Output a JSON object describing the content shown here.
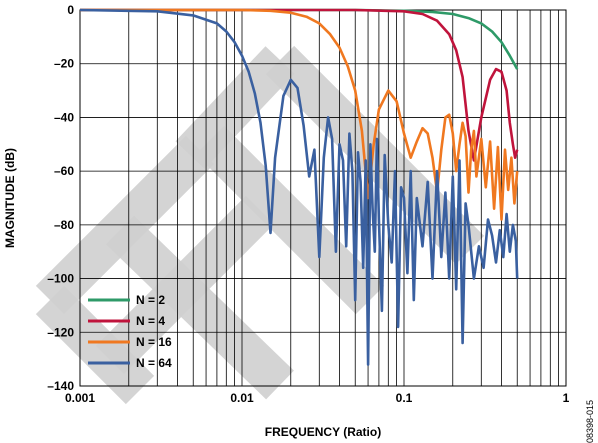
{
  "chart_data": {
    "type": "line",
    "xscale": "log",
    "xlabel": "FREQUENCY (Ratio)",
    "ylabel": "MAGNITUDE (dB)",
    "xlim": [
      0.001,
      1
    ],
    "ylim": [
      -140,
      0
    ],
    "xticks": [
      0.001,
      0.01,
      0.1,
      1
    ],
    "xtick_labels": [
      "0.001",
      "0.01",
      "0.1",
      "1"
    ],
    "yticks": [
      0,
      -20,
      -40,
      -60,
      -80,
      -100,
      -120,
      -140
    ],
    "ytick_labels": [
      "0",
      "–20",
      "–40",
      "–60",
      "–80",
      "–100",
      "–120",
      "–140"
    ],
    "grid": true,
    "legend_position": "bottom-left",
    "watermark_text": "ETE",
    "figure_id": "08398-015",
    "series": [
      {
        "name": "N = 2",
        "color": "#2e9a68",
        "x": [
          0.001,
          0.01,
          0.05,
          0.1,
          0.15,
          0.2,
          0.25,
          0.3,
          0.35,
          0.4,
          0.45,
          0.5
        ],
        "y": [
          0,
          0,
          0,
          -0.3,
          -0.7,
          -1.5,
          -3,
          -5,
          -8,
          -12,
          -17,
          -22
        ]
      },
      {
        "name": "N = 4",
        "color": "#c0143c",
        "x": [
          0.001,
          0.01,
          0.05,
          0.1,
          0.13,
          0.16,
          0.19,
          0.21,
          0.23,
          0.25,
          0.27,
          0.3,
          0.34,
          0.37,
          0.4,
          0.43,
          0.45,
          0.47,
          0.485,
          0.5
        ],
        "y": [
          0,
          0,
          0,
          -0.5,
          -1.5,
          -4,
          -9,
          -15,
          -25,
          -45,
          -56,
          -40,
          -26,
          -22,
          -23,
          -30,
          -42,
          -50,
          -55,
          -52
        ]
      },
      {
        "name": "N = 16",
        "color": "#f07820",
        "x": [
          0.001,
          0.005,
          0.01,
          0.015,
          0.02,
          0.025,
          0.03,
          0.035,
          0.04,
          0.045,
          0.05,
          0.055,
          0.06,
          0.065,
          0.07,
          0.08,
          0.09,
          0.1,
          0.11,
          0.12,
          0.13,
          0.14,
          0.15,
          0.16,
          0.17,
          0.18,
          0.19,
          0.2,
          0.21,
          0.22,
          0.23,
          0.24,
          0.25,
          0.26,
          0.27,
          0.28,
          0.3,
          0.32,
          0.34,
          0.36,
          0.38,
          0.4,
          0.42,
          0.44,
          0.46,
          0.48,
          0.5
        ],
        "y": [
          0,
          0,
          0,
          -0.3,
          -1,
          -2.5,
          -5,
          -9,
          -14,
          -21,
          -30,
          -45,
          -70,
          -50,
          -37,
          -30,
          -34,
          -46,
          -55,
          -49,
          -44,
          -46,
          -55,
          -68,
          -52,
          -40,
          -39,
          -46,
          -60,
          -50,
          -42,
          -47,
          -68,
          -52,
          -45,
          -62,
          -48,
          -66,
          -49,
          -74,
          -51,
          -78,
          -52,
          -67,
          -55,
          -72,
          -60
        ]
      },
      {
        "name": "N = 64",
        "color": "#3a60a0",
        "x": [
          0.001,
          0.003,
          0.005,
          0.007,
          0.008,
          0.009,
          0.01,
          0.011,
          0.012,
          0.013,
          0.014,
          0.015,
          0.016,
          0.018,
          0.02,
          0.022,
          0.024,
          0.026,
          0.028,
          0.03,
          0.032,
          0.034,
          0.036,
          0.038,
          0.04,
          0.042,
          0.044,
          0.046,
          0.048,
          0.05,
          0.052,
          0.054,
          0.056,
          0.058,
          0.06,
          0.062,
          0.064,
          0.066,
          0.068,
          0.07,
          0.073,
          0.076,
          0.08,
          0.084,
          0.088,
          0.092,
          0.096,
          0.1,
          0.105,
          0.11,
          0.115,
          0.12,
          0.13,
          0.14,
          0.15,
          0.16,
          0.17,
          0.18,
          0.19,
          0.2,
          0.21,
          0.22,
          0.23,
          0.24,
          0.25,
          0.27,
          0.29,
          0.31,
          0.33,
          0.35,
          0.37,
          0.39,
          0.41,
          0.43,
          0.45,
          0.47,
          0.49,
          0.5
        ],
        "y": [
          0,
          -0.5,
          -2,
          -5,
          -8,
          -12,
          -17,
          -23,
          -31,
          -42,
          -58,
          -83,
          -55,
          -32,
          -26,
          -29,
          -43,
          -62,
          -52,
          -92,
          -55,
          -40,
          -48,
          -90,
          -50,
          -56,
          -88,
          -46,
          -60,
          -108,
          -53,
          -64,
          -96,
          -56,
          -132,
          -50,
          -74,
          -90,
          -48,
          -78,
          -112,
          -54,
          -80,
          -94,
          -60,
          -118,
          -66,
          -70,
          -98,
          -60,
          -108,
          -70,
          -88,
          -64,
          -100,
          -60,
          -92,
          -68,
          -100,
          -62,
          -104,
          -56,
          -124,
          -72,
          -80,
          -100,
          -88,
          -96,
          -78,
          -84,
          -94,
          -82,
          -92,
          -76,
          -90,
          -80,
          -86,
          -100
        ]
      }
    ]
  }
}
